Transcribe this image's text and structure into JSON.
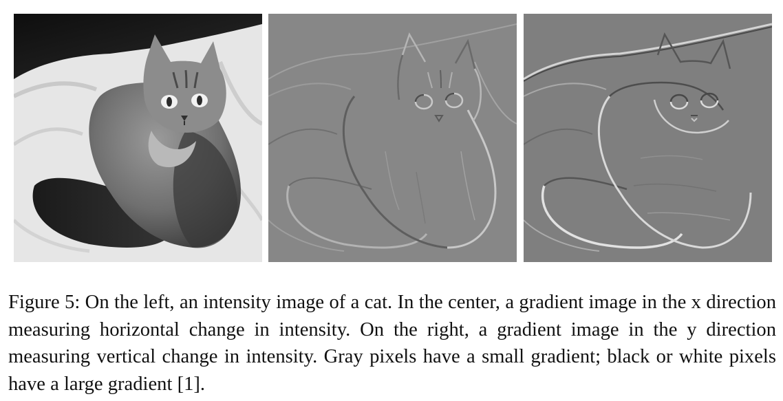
{
  "figure": {
    "panels": [
      {
        "id": "left",
        "kind": "photo"
      },
      {
        "id": "center",
        "kind": "gradient-x"
      },
      {
        "id": "right",
        "kind": "gradient-y"
      }
    ],
    "caption": {
      "label": "Figure 5:",
      "text": "On the left, an intensity image of a cat. In the center, a gradient image in the x direction measuring horizontal change in intensity. On the right, a gradient image in the y direction measuring vertical change in intensity. Gray pixels have a small gradient; black or white pixels have a large gradient [1]."
    }
  }
}
